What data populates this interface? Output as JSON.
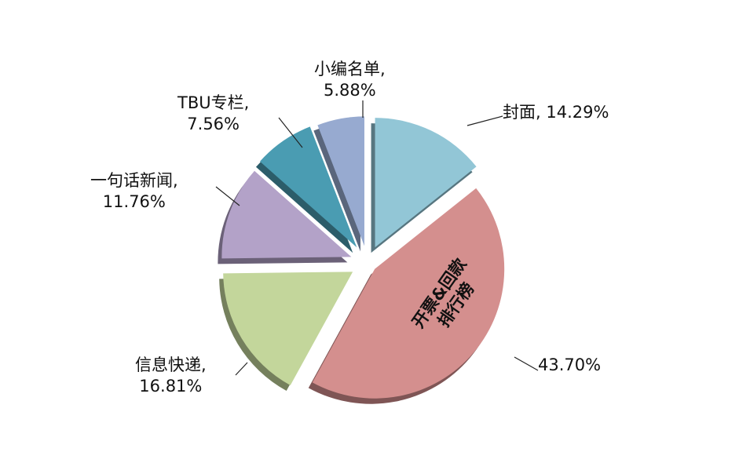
{
  "chart_data": {
    "type": "pie",
    "exploded": true,
    "style": "3d",
    "legend": "none",
    "slices": [
      {
        "label": "封面",
        "value": 14.29,
        "text": "14.29%",
        "color": "#92c6d6"
      },
      {
        "label": "开票&回款排行榜",
        "label_line1": "开票&回款",
        "label_line2": "排行榜",
        "value": 43.7,
        "text": "43.70%",
        "color": "#d48f8e"
      },
      {
        "label": "信息快递",
        "value": 16.81,
        "text": "16.81%",
        "color": "#c3d69b"
      },
      {
        "label": "一句话新闻",
        "value": 11.76,
        "text": "11.76%",
        "color": "#b3a2c8"
      },
      {
        "label": "TBU专栏",
        "value": 7.56,
        "text": "7.56%",
        "color": "#4a9cb2"
      },
      {
        "label": "小编名单",
        "value": 5.88,
        "text": "5.88%",
        "color": "#97aad0"
      }
    ]
  }
}
